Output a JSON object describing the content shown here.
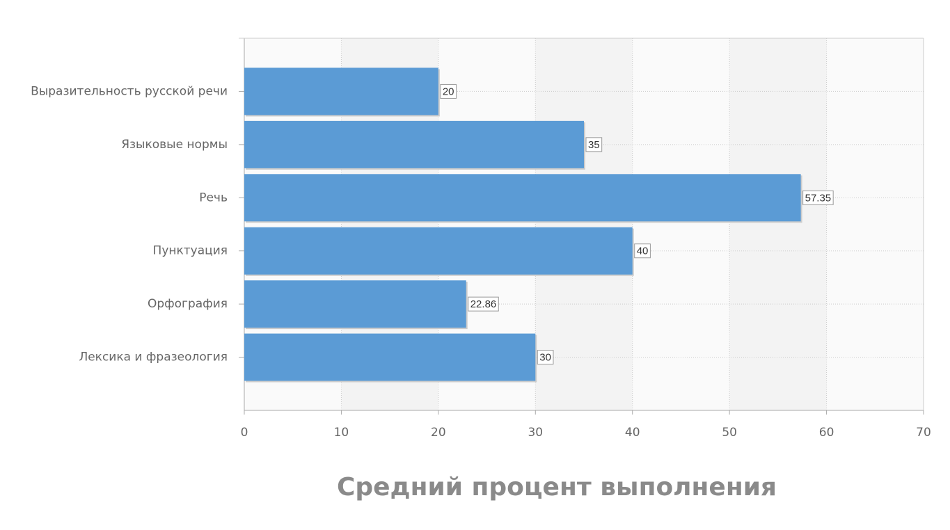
{
  "chart_data": {
    "type": "bar",
    "orientation": "horizontal",
    "title": "Средний процент выполнения",
    "categories": [
      "Выразительность русской речи",
      "Языковые нормы",
      "Речь",
      "Пунктуация",
      "Орфография",
      "Лексика и фразеология"
    ],
    "values": [
      20,
      35,
      57.35,
      40,
      22.86,
      30
    ],
    "color": "#5b9bd5",
    "xlim": [
      0,
      70
    ],
    "xticks": [
      0,
      10,
      20,
      30,
      40,
      50,
      60,
      70
    ],
    "grid": true
  }
}
